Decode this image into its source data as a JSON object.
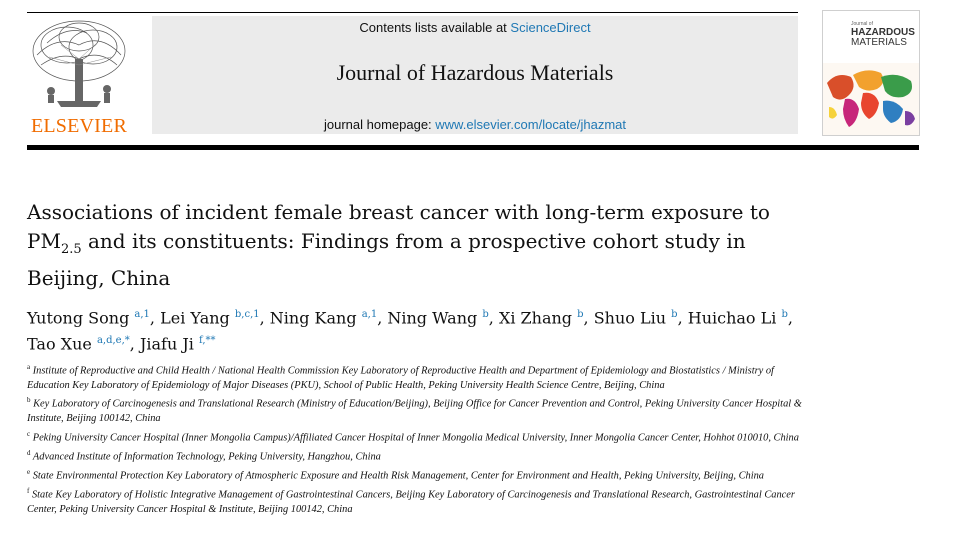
{
  "header": {
    "contents_prefix": "Contents lists available at ",
    "contents_link": "ScienceDirect",
    "journal_title": "Journal of Hazardous Materials",
    "homepage_prefix": "journal homepage: ",
    "homepage_link": "www.elsevier.com/locate/jhazmat",
    "publisher": "ELSEVIER",
    "cover": {
      "small_text": "Journal of",
      "title_line1": "HAZARDOUS",
      "title_line2": "MATERIALS"
    }
  },
  "article": {
    "title_part1": "Associations of incident female breast cancer with long-term exposure to PM",
    "title_sub": "2.5",
    "title_part2": " and its constituents: Findings from a prospective cohort study in Beijing, China"
  },
  "authors": [
    {
      "name": "Yutong Song",
      "sup": "a,1",
      "sep": ", "
    },
    {
      "name": "Lei Yang",
      "sup": "b,c,1",
      "sep": ", "
    },
    {
      "name": "Ning Kang",
      "sup": "a,1",
      "sep": ", "
    },
    {
      "name": "Ning Wang",
      "sup": "b",
      "sep": ", "
    },
    {
      "name": "Xi Zhang",
      "sup": "b",
      "sep": ", "
    },
    {
      "name": "Shuo Liu",
      "sup": "b",
      "sep": ", "
    },
    {
      "name": "Huichao Li",
      "sup": "b",
      "sep": ","
    },
    {
      "name": "Tao Xue",
      "sup": "a,d,e,*",
      "sep": ", "
    },
    {
      "name": "Jiafu Ji",
      "sup": "f,**",
      "sep": ""
    }
  ],
  "affiliations": [
    {
      "key": "a",
      "text": "Institute of Reproductive and Child Health / National Health Commission Key Laboratory of Reproductive Health and Department of Epidemiology and Biostatistics / Ministry of Education Key Laboratory of Epidemiology of Major Diseases (PKU), School of Public Health, Peking University Health Science Centre, Beijing, China"
    },
    {
      "key": "b",
      "text": "Key Laboratory of Carcinogenesis and Translational Research (Ministry of Education/Beijing), Beijing Office for Cancer Prevention and Control, Peking University Cancer Hospital & Institute, Beijing 100142, China"
    },
    {
      "key": "c",
      "text": "Peking University Cancer Hospital (Inner Mongolia Campus)/Affiliated Cancer Hospital of Inner Mongolia Medical University, Inner Mongolia Cancer Center, Hohhot 010010, China"
    },
    {
      "key": "d",
      "text": "Advanced Institute of Information Technology, Peking University, Hangzhou, China"
    },
    {
      "key": "e",
      "text": "State Environmental Protection Key Laboratory of Atmospheric Exposure and Health Risk Management, Center for Environment and Health, Peking University, Beijing, China"
    },
    {
      "key": "f",
      "text": "State Key Laboratory of Holistic Integrative Management of Gastrointestinal Cancers, Beijing Key Laboratory of Carcinogenesis and Translational Research, Gastrointestinal Cancer Center, Peking University Cancer Hospital & Institute, Beijing 100142, China"
    }
  ],
  "colors": {
    "link": "#1f78b4",
    "publisher_orange": "#f06c00",
    "masthead_gray": "#ebebeb"
  }
}
